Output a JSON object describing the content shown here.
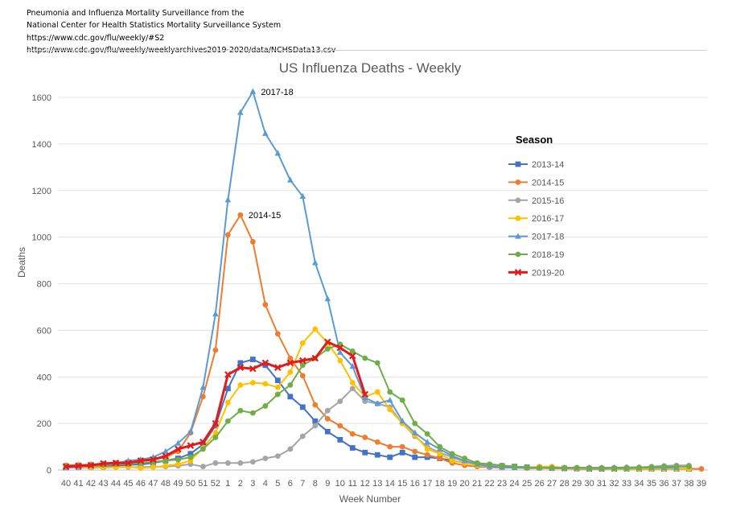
{
  "header": {
    "lines": [
      "Pneumonia and Influenza Mortality Surveillance from the",
      "National Center for Health Statistics Mortality Surveillance System",
      "https://www.cdc.gov/flu/weekly/#S2",
      "https://www.cdc.gov/flu/weekly/weeklyarchives2019-2020/data/NCHSData13.csv"
    ]
  },
  "chart_data": {
    "type": "line",
    "title": "US Influenza Deaths - Weekly",
    "xlabel": "Week Number",
    "ylabel": "Deaths",
    "ylim": [
      0,
      1600
    ],
    "yticks": [
      0,
      200,
      400,
      600,
      800,
      1000,
      1200,
      1400,
      1600
    ],
    "grid": "horizontal",
    "legend": {
      "title": "Season",
      "position": "right"
    },
    "categories": [
      "40",
      "41",
      "42",
      "43",
      "44",
      "45",
      "46",
      "47",
      "48",
      "49",
      "50",
      "51",
      "52",
      "1",
      "2",
      "3",
      "4",
      "5",
      "6",
      "7",
      "8",
      "9",
      "10",
      "11",
      "12",
      "13",
      "14",
      "15",
      "16",
      "17",
      "18",
      "19",
      "20",
      "21",
      "22",
      "23",
      "24",
      "25",
      "26",
      "27",
      "28",
      "29",
      "30",
      "31",
      "32",
      "33",
      "34",
      "35",
      "36",
      "37",
      "38",
      "39"
    ],
    "series": [
      {
        "name": "2013-14",
        "color": "#4472C4",
        "marker": "square",
        "values": [
          10,
          12,
          14,
          16,
          18,
          22,
          24,
          30,
          40,
          50,
          70,
          110,
          190,
          350,
          460,
          475,
          450,
          385,
          315,
          270,
          210,
          165,
          130,
          95,
          75,
          65,
          55,
          75,
          55,
          55,
          50,
          40,
          30,
          25,
          20,
          18,
          15,
          12,
          10,
          8,
          7,
          6,
          5,
          5,
          5,
          5,
          5,
          5,
          5,
          5,
          5,
          null
        ]
      },
      {
        "name": "2014-15",
        "color": "#ED7D31",
        "marker": "circle",
        "values": [
          20,
          22,
          24,
          27,
          30,
          35,
          40,
          45,
          55,
          80,
          160,
          315,
          515,
          1010,
          1095,
          980,
          710,
          585,
          480,
          405,
          280,
          220,
          190,
          155,
          140,
          120,
          100,
          100,
          80,
          65,
          50,
          30,
          20,
          15,
          12,
          10,
          10,
          8,
          8,
          8,
          7,
          6,
          6,
          6,
          6,
          6,
          6,
          6,
          6,
          6,
          6,
          5
        ]
      },
      {
        "name": "2015-16",
        "color": "#A5A5A5",
        "marker": "circle",
        "values": [
          10,
          10,
          10,
          10,
          12,
          12,
          12,
          14,
          15,
          18,
          25,
          15,
          30,
          30,
          30,
          35,
          50,
          60,
          90,
          145,
          190,
          255,
          295,
          350,
          295,
          285,
          270,
          200,
          145,
          100,
          75,
          55,
          35,
          25,
          20,
          15,
          12,
          10,
          10,
          10,
          10,
          10,
          10,
          10,
          10,
          12,
          12,
          15,
          18,
          20,
          20,
          null
        ]
      },
      {
        "name": "2016-17",
        "color": "#FFC000",
        "marker": "circle",
        "values": [
          15,
          15,
          12,
          12,
          12,
          15,
          8,
          12,
          18,
          25,
          40,
          95,
          160,
          290,
          365,
          375,
          370,
          355,
          420,
          545,
          605,
          545,
          470,
          375,
          315,
          335,
          260,
          200,
          150,
          90,
          70,
          40,
          30,
          20,
          15,
          12,
          10,
          10,
          15,
          15,
          10,
          8,
          6,
          6,
          5,
          5,
          5,
          5,
          5,
          5,
          5,
          null
        ]
      },
      {
        "name": "2017-18",
        "color": "#5B9BD5",
        "marker": "triangle",
        "values": [
          12,
          15,
          20,
          25,
          30,
          40,
          45,
          55,
          80,
          115,
          165,
          355,
          670,
          1160,
          1535,
          1625,
          1445,
          1360,
          1245,
          1175,
          890,
          735,
          505,
          445,
          310,
          285,
          300,
          210,
          160,
          120,
          90,
          60,
          40,
          25,
          15,
          12,
          10,
          10,
          10,
          10,
          10,
          10,
          10,
          10,
          10,
          10,
          10,
          10,
          10,
          10,
          null,
          null
        ]
      },
      {
        "name": "2018-19",
        "color": "#70AD47",
        "marker": "circle",
        "values": [
          15,
          18,
          20,
          22,
          25,
          25,
          30,
          35,
          40,
          45,
          55,
          90,
          140,
          210,
          255,
          245,
          275,
          325,
          365,
          450,
          480,
          520,
          540,
          510,
          480,
          460,
          335,
          300,
          200,
          155,
          100,
          70,
          50,
          30,
          25,
          20,
          15,
          12,
          10,
          10,
          10,
          10,
          8,
          8,
          8,
          8,
          10,
          12,
          15,
          15,
          15,
          null
        ]
      },
      {
        "name": "2019-20",
        "color": "#E31A1C",
        "marker": "x",
        "values": [
          15,
          18,
          20,
          28,
          30,
          30,
          40,
          45,
          60,
          90,
          105,
          120,
          200,
          410,
          440,
          435,
          460,
          440,
          460,
          470,
          480,
          550,
          525,
          490,
          325,
          null,
          null,
          null,
          null,
          null,
          null,
          null,
          null,
          null,
          null,
          null,
          null,
          null,
          null,
          null,
          null,
          null,
          null,
          null,
          null,
          null,
          null,
          null,
          null,
          null,
          null,
          null
        ]
      }
    ],
    "annotations": [
      {
        "text": "2017-18",
        "category": "3",
        "value": 1625
      },
      {
        "text": "2014-15",
        "category": "2",
        "value": 1095
      }
    ]
  }
}
